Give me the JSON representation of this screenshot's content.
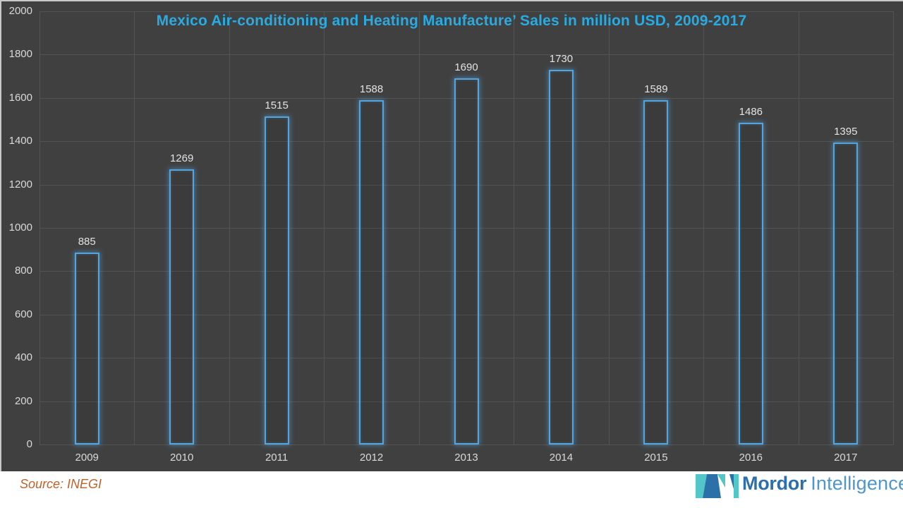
{
  "chart": {
    "title": "Mexico Air-conditioning and Heating Manufacture’ Sales in million USD, 2009-2017",
    "title_color": "#29ABE2"
  },
  "chart_data": {
    "type": "bar",
    "title": "Mexico Air-conditioning and Heating Manufacture’ Sales in million USD, 2009-2017",
    "categories": [
      "2009",
      "2010",
      "2011",
      "2012",
      "2013",
      "2014",
      "2015",
      "2016",
      "2017"
    ],
    "values": [
      885,
      1269,
      1515,
      1588,
      1690,
      1730,
      1589,
      1486,
      1395
    ],
    "xlabel": "",
    "ylabel": "",
    "ylim": [
      0,
      2000
    ],
    "y_ticks": [
      0,
      200,
      400,
      600,
      800,
      1000,
      1200,
      1400,
      1600,
      1800,
      2000
    ],
    "grid": true,
    "legend": "none",
    "colors": {
      "background": "#404040",
      "gridline": "#535353",
      "tick_label": "#D9D9D9",
      "value_label": "#E3E3E3",
      "bar_outline": "#54A4DF",
      "bar_glow": "rgba(84,164,223,0.55)"
    }
  },
  "footer": {
    "source": "Source: INEGI",
    "source_color": "#C2602C",
    "logo": {
      "word_bold": "Mordor",
      "word_light": "Intelligence",
      "icon_teal": "#53C6CA",
      "icon_blue": "#2C70A9",
      "word_bold_color": "#2C6FAC",
      "word_light_color": "#4E96CC"
    }
  }
}
